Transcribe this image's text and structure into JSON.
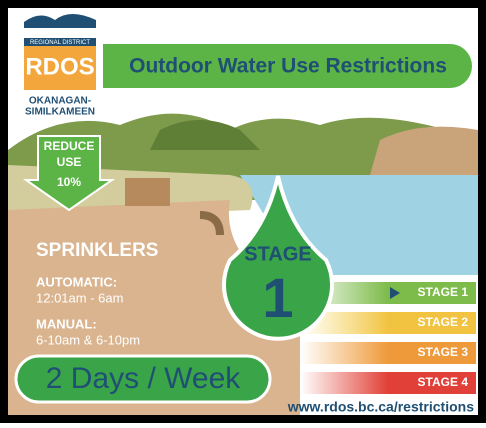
{
  "logo": {
    "region": "REGIONAL DISTRICT",
    "name": "RDOS",
    "area": [
      "OKANAGAN-",
      "SIMILKAMEEN"
    ]
  },
  "title": "Outdoor Water Use Restrictions",
  "reduce": [
    "REDUCE",
    "USE",
    "10%"
  ],
  "sprinklers": {
    "title": "SPRINKLERS",
    "automatic": {
      "label": "AUTOMATIC:",
      "time": "12:01am - 6am"
    },
    "manual": {
      "label": "MANUAL:",
      "time": "6-10am & 6-10pm"
    }
  },
  "frequency": "2 Days / Week",
  "current_stage": {
    "label": "STAGE",
    "number": "1"
  },
  "stages": [
    "STAGE 1",
    "STAGE 2",
    "STAGE 3",
    "STAGE 4"
  ],
  "url": "www.rdos.bc.ca/restrictions"
}
